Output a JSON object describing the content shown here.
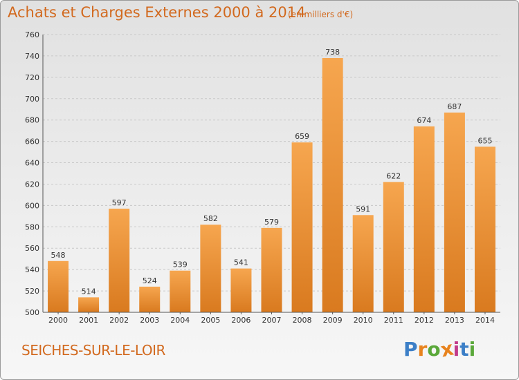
{
  "header": {
    "title": "Achats et Charges Externes 2000 à 2014",
    "subtitle": "(en milliers d'€)"
  },
  "footer": {
    "commune": "SEICHES-SUR-LE-LOIR",
    "logo_text": "Proxiti"
  },
  "colors": {
    "title": "#d2691e",
    "bar_top": "#f6a64f",
    "bar_bottom": "#d97a1f",
    "grid": "#c8c8c8",
    "logo": [
      "#3c7fc7",
      "#e8831e",
      "#5aa83a",
      "#e8831e",
      "#c23a8a",
      "#3c7fc7",
      "#5aa83a"
    ]
  },
  "chart_data": {
    "type": "bar",
    "title": "Achats et Charges Externes 2000 à 2014",
    "subtitle": "(en milliers d'€)",
    "categories": [
      "2000",
      "2001",
      "2002",
      "2003",
      "2004",
      "2005",
      "2006",
      "2007",
      "2008",
      "2009",
      "2010",
      "2011",
      "2012",
      "2013",
      "2014"
    ],
    "values": [
      548,
      514,
      597,
      524,
      539,
      582,
      541,
      579,
      659,
      738,
      591,
      622,
      674,
      687,
      655
    ],
    "ylim": [
      500,
      760
    ],
    "yticks": [
      500,
      520,
      540,
      560,
      580,
      600,
      620,
      640,
      660,
      680,
      700,
      720,
      740,
      760
    ],
    "grid": true,
    "data_labels": true
  }
}
